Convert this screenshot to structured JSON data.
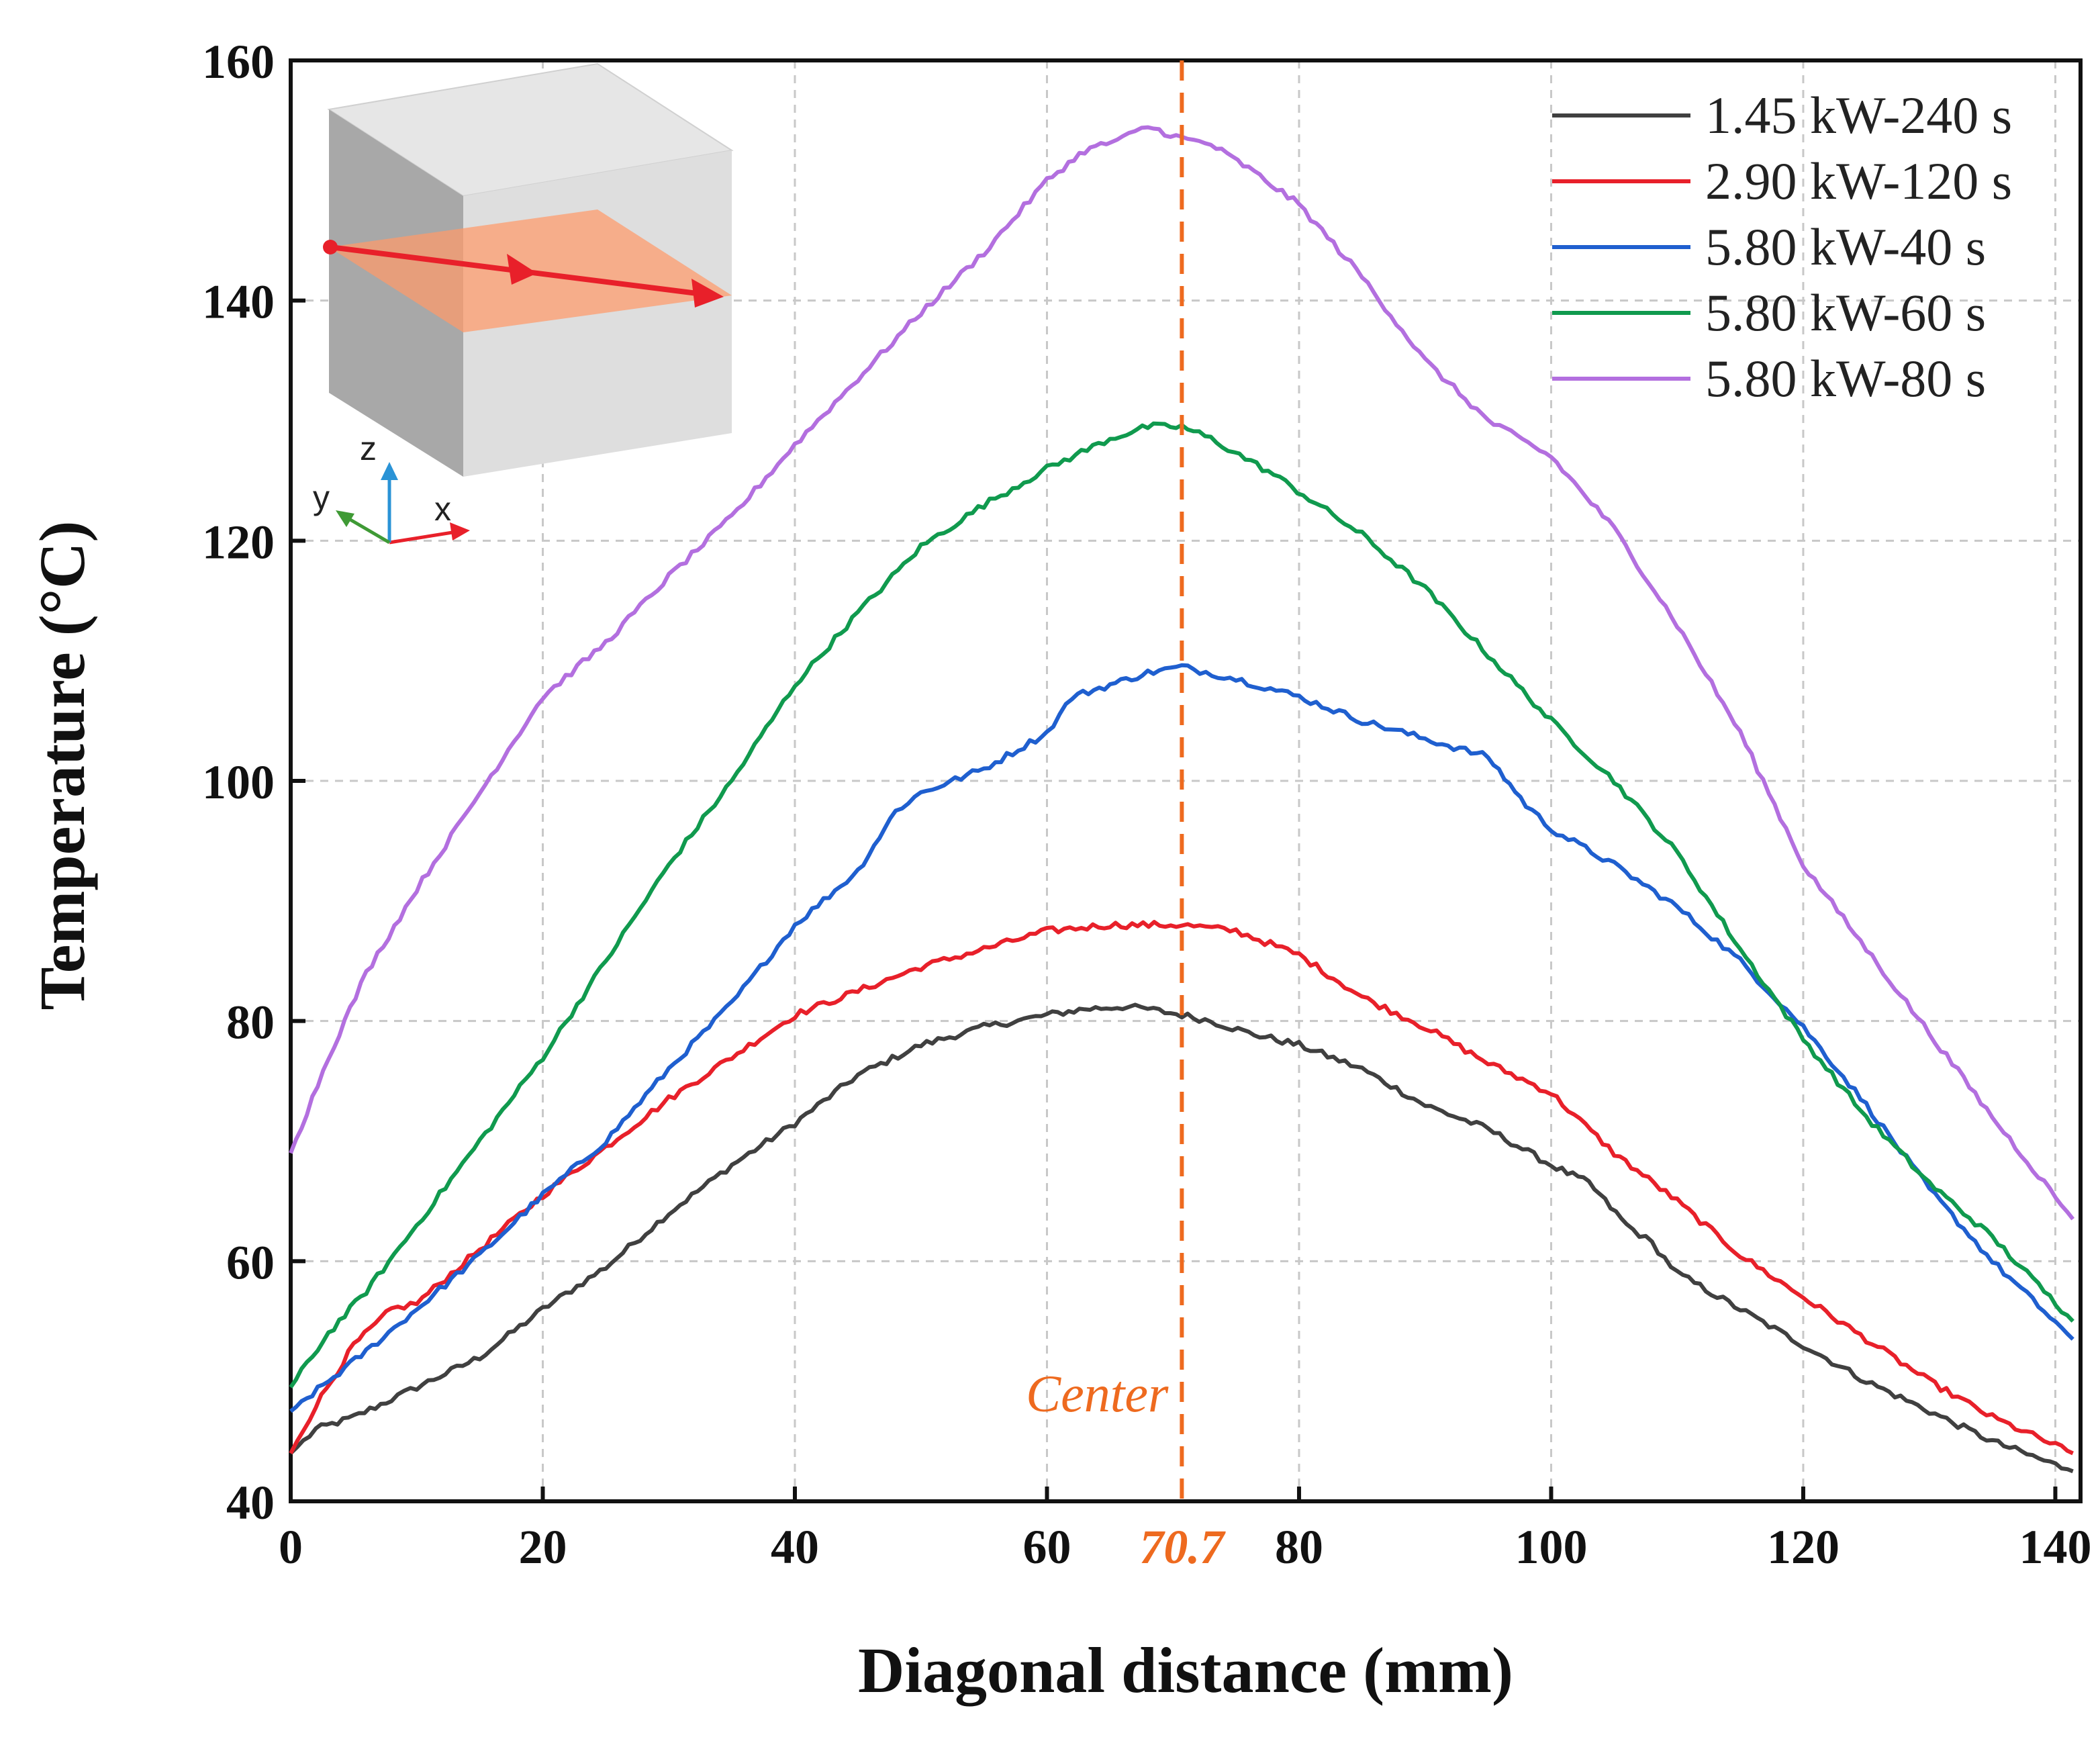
{
  "chart_data": {
    "type": "line",
    "title": "",
    "xlabel": "Diagonal distance (mm)",
    "ylabel": "Temperature (°C)",
    "xlim": [
      0,
      142
    ],
    "ylim": [
      40,
      160
    ],
    "xticks": [
      0,
      20,
      40,
      60,
      80,
      100,
      120,
      140
    ],
    "yticks": [
      40,
      60,
      80,
      100,
      120,
      140,
      160
    ],
    "grid": true,
    "legend_position": "top-right",
    "annotation": {
      "label": "Center",
      "x": 70.7,
      "x_label": "70.7",
      "color": "#ee6a1f"
    },
    "series": [
      {
        "name": "1.45 kW-240 s",
        "color": "#404040",
        "x": [
          0,
          2,
          5,
          8,
          10,
          15,
          20,
          25,
          30,
          35,
          40,
          45,
          50,
          55,
          60,
          63,
          66,
          68,
          70.7,
          73,
          76,
          80,
          85,
          90,
          95,
          100,
          103,
          106,
          108,
          110,
          115,
          120,
          125,
          130,
          135,
          141.4
        ],
        "y": [
          44,
          46,
          47,
          48.5,
          49.5,
          52,
          56,
          59.5,
          64,
          68,
          71.5,
          75.5,
          78,
          79.5,
          80.5,
          81,
          81.2,
          81,
          80.5,
          80,
          79,
          78,
          76,
          73,
          71,
          68,
          66.5,
          63,
          61.5,
          59,
          56,
          53,
          50,
          47.5,
          45,
          42.5
        ]
      },
      {
        "name": "2.90 kW-120 s",
        "color": "#e8202a",
        "x": [
          0,
          2,
          5,
          8,
          10,
          15,
          20,
          25,
          30,
          35,
          40,
          45,
          50,
          55,
          60,
          65,
          70.7,
          75,
          80,
          85,
          90,
          95,
          100,
          105,
          110,
          115,
          120,
          125,
          130,
          135,
          141.4
        ],
        "y": [
          44,
          48,
          53,
          56,
          56.5,
          61,
          65.5,
          69.5,
          73.5,
          77,
          80.5,
          82.5,
          84.5,
          86,
          87.5,
          88,
          88,
          87.5,
          85.5,
          82,
          79.5,
          76.5,
          74,
          69,
          65,
          60.5,
          57,
          53.5,
          50,
          47,
          44
        ]
      },
      {
        "name": "5.80 kW-40 s",
        "color": "#1f5fcf",
        "x": [
          0,
          3,
          6,
          10,
          15,
          20,
          25,
          30,
          35,
          40,
          45,
          48,
          50,
          55,
          60,
          62,
          65,
          68,
          70.7,
          75,
          80,
          85,
          90,
          95,
          98,
          100,
          105,
          110,
          115,
          120,
          125,
          130,
          135,
          141.4
        ],
        "y": [
          47.5,
          50,
          52.5,
          56,
          60.5,
          65.5,
          70,
          76,
          81.5,
          88,
          92.5,
          97.5,
          99,
          101,
          104,
          107,
          108,
          109,
          109.5,
          108.5,
          107,
          105,
          103.5,
          102,
          98,
          96,
          93,
          89.5,
          85,
          79.5,
          73,
          66,
          60,
          53.5
        ]
      },
      {
        "name": "5.80 kW-60 s",
        "color": "#109a4e",
        "x": [
          0,
          3,
          6,
          10,
          15,
          20,
          25,
          30,
          35,
          40,
          45,
          50,
          55,
          60,
          65,
          68,
          70.7,
          73,
          78,
          85,
          90,
          95,
          100,
          105,
          110,
          115,
          120,
          125,
          130,
          135,
          141.4
        ],
        "y": [
          49.5,
          54,
          57.5,
          63,
          70,
          77,
          85,
          93,
          100,
          108,
          114,
          119.5,
          123,
          126,
          128.5,
          129.5,
          129.5,
          128.5,
          125.5,
          120.5,
          116,
          110.5,
          105,
          100,
          94,
          86,
          78.5,
          72,
          66.5,
          62,
          55
        ]
      },
      {
        "name": "5.80 kW-80 s",
        "color": "#b36fdf",
        "x": [
          0,
          3,
          6,
          10,
          15,
          20,
          25,
          30,
          35,
          40,
          45,
          50,
          55,
          60,
          63,
          66,
          68,
          70.7,
          73,
          76,
          80,
          85,
          90,
          95,
          100,
          105,
          110,
          115,
          120,
          125,
          130,
          135,
          141.4
        ],
        "y": [
          69,
          77,
          84,
          91,
          99,
          107,
          111.5,
          117,
          122,
          128,
          133.5,
          139,
          144,
          150,
          152.5,
          153.5,
          154.5,
          153.5,
          153,
          151,
          148,
          142,
          135,
          130,
          127,
          121,
          113,
          104,
          93,
          86,
          79,
          72,
          63.5
        ]
      }
    ]
  }
}
